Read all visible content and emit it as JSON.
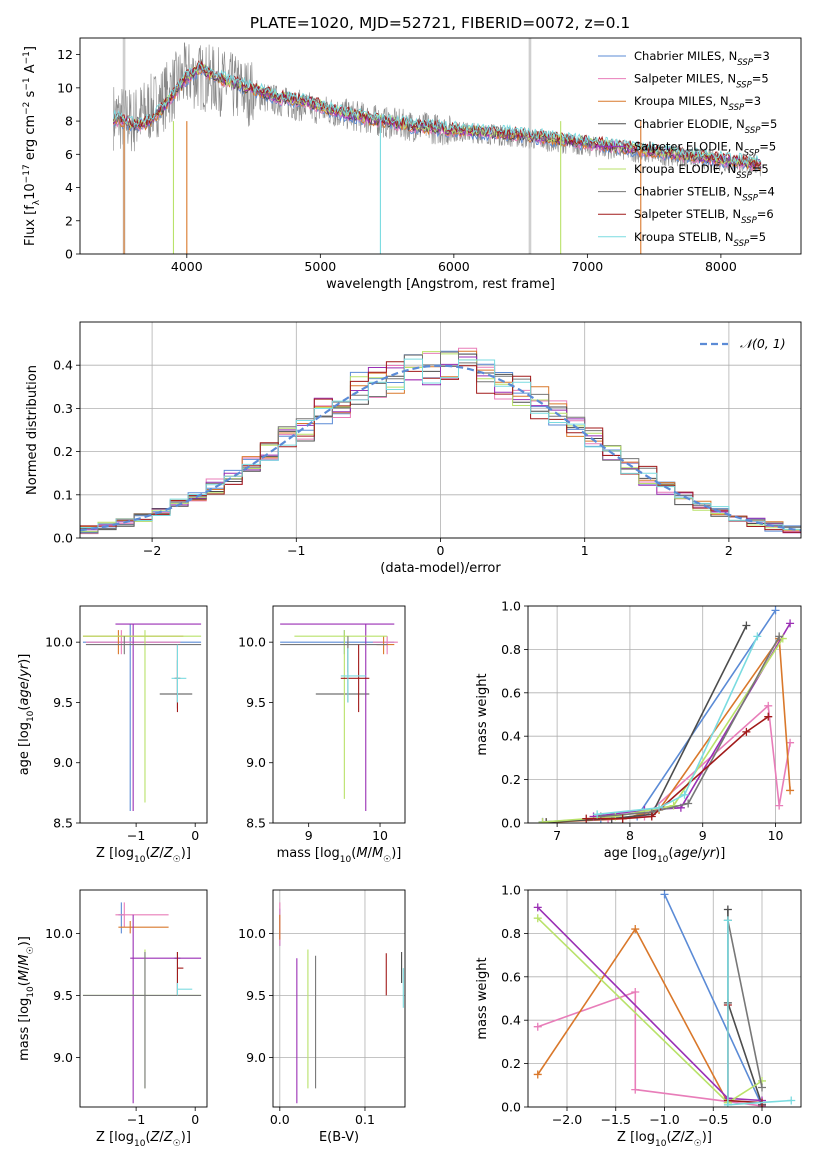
{
  "figure_title": "PLATE=1020, MJD=52721, FIBERID=0072, z=0.1",
  "colors": {
    "c1": "#5b8bd6",
    "c2": "#e87db9",
    "c3": "#d9782b",
    "c4": "#4d4d4d",
    "c5": "#9a2fb5",
    "c6": "#b9e26a",
    "c7": "#777777",
    "c8": "#a11a1a",
    "c9": "#7adbe0",
    "normal": "#5b8bd6",
    "grid": "#b0b0b0"
  },
  "chart_data": [
    {
      "id": "spectrum",
      "type": "line",
      "title": "",
      "xlabel": "wavelength [Angstrom, rest frame]",
      "ylabel": "Flux [f_λ10^-17 erg cm^-2 s^-1 A^-1]",
      "xlim": [
        3200,
        8600
      ],
      "ylim": [
        0,
        13
      ],
      "xticks": [
        4000,
        5000,
        6000,
        7000,
        8000
      ],
      "yticks": [
        0,
        2,
        4,
        6,
        8,
        10,
        12
      ],
      "grid": false,
      "legend_position": "top-right",
      "observed_flux": {
        "x": [
          3450,
          3600,
          3800,
          4000,
          4200,
          4400,
          4600,
          4800,
          5000,
          5200,
          5500,
          5800,
          6000,
          6300,
          6600,
          6900,
          7200,
          7500,
          7800,
          8100,
          8300
        ],
        "y": [
          8.3,
          8.0,
          9.2,
          10.8,
          10.5,
          9.9,
          9.4,
          9.0,
          8.7,
          8.4,
          7.9,
          7.6,
          7.4,
          7.2,
          6.9,
          6.6,
          6.3,
          6.0,
          5.8,
          5.5,
          5.3
        ]
      },
      "model_flux": {
        "x": [
          3450,
          3600,
          3700,
          3800,
          3900,
          4000,
          4100,
          4300,
          4500,
          4700,
          4900,
          5100,
          5400,
          5700,
          6000,
          6300,
          6600,
          6900,
          7200,
          7500,
          7800,
          8100,
          8300
        ],
        "y": [
          8.2,
          7.8,
          7.9,
          8.6,
          9.6,
          10.6,
          11.2,
          10.4,
          9.9,
          9.4,
          9.2,
          8.6,
          8.1,
          7.7,
          7.5,
          7.3,
          7.1,
          6.8,
          6.5,
          6.2,
          5.9,
          5.6,
          5.4
        ]
      },
      "legend": [
        {
          "label": "Chabrier MILES, N",
          "sub": "SSP",
          "eq": "=3",
          "color": "c1"
        },
        {
          "label": "Salpeter MILES, N",
          "sub": "SSP",
          "eq": "=5",
          "color": "c2"
        },
        {
          "label": "Kroupa MILES, N",
          "sub": "SSP",
          "eq": "=3",
          "color": "c3"
        },
        {
          "label": "Chabrier ELODIE, N",
          "sub": "SSP",
          "eq": "=5",
          "color": "c4"
        },
        {
          "label": "Salpeter ELODIE, N",
          "sub": "SSP",
          "eq": "=5",
          "color": "c5"
        },
        {
          "label": "Kroupa ELODIE, N",
          "sub": "SSP",
          "eq": "=5",
          "color": "c6"
        },
        {
          "label": "Chabrier STELIB, N",
          "sub": "SSP",
          "eq": "=4",
          "color": "c7"
        },
        {
          "label": "Salpeter STELIB, N",
          "sub": "SSP",
          "eq": "=6",
          "color": "c8"
        },
        {
          "label": "Kroupa STELIB, N",
          "sub": "SSP",
          "eq": "=5",
          "color": "c9"
        }
      ]
    },
    {
      "id": "residual-histogram",
      "type": "line",
      "xlabel": "(data-model)/error",
      "ylabel": "Normed distribution",
      "xlim": [
        -2.5,
        2.5
      ],
      "ylim": [
        0,
        0.5
      ],
      "xticks": [
        -2,
        -1,
        0,
        1,
        2
      ],
      "yticks": [
        0.0,
        0.1,
        0.2,
        0.3,
        0.4
      ],
      "grid": true,
      "legend_position": "top-right",
      "legend": [
        {
          "label": "𝒩(0, 1)",
          "color": "normal"
        }
      ],
      "bin_edges": [
        -2.5,
        -2.375,
        -2.25,
        -2.125,
        -2.0,
        -1.875,
        -1.75,
        -1.625,
        -1.5,
        -1.375,
        -1.25,
        -1.125,
        -1.0,
        -0.875,
        -0.75,
        -0.625,
        -0.5,
        -0.375,
        -0.25,
        -0.125,
        0.0,
        0.125,
        0.25,
        0.375,
        0.5,
        0.625,
        0.75,
        0.875,
        1.0,
        1.125,
        1.25,
        1.375,
        1.5,
        1.625,
        1.75,
        1.875,
        2.0,
        2.125,
        2.25,
        2.375,
        2.5
      ]
    },
    {
      "id": "age-vs-Z",
      "type": "scatter",
      "xlabel": "Z [log10(Z/Z☉)]",
      "ylabel": "age [log10(age/yr)]",
      "xlim": [
        -1.95,
        0.2
      ],
      "ylim": [
        8.5,
        10.3
      ],
      "xticks": [
        -1,
        0
      ],
      "yticks": [
        8.5,
        9.0,
        9.5,
        10.0
      ],
      "grid": false
    },
    {
      "id": "age-vs-mass",
      "type": "scatter",
      "xlabel": "mass [log10(M/M☉)]",
      "ylabel": "",
      "xlim": [
        8.5,
        10.35
      ],
      "ylim": [
        8.5,
        10.3
      ],
      "xticks": [
        9,
        10
      ],
      "yticks": [
        8.5,
        9.0,
        9.5,
        10.0
      ],
      "grid": false
    },
    {
      "id": "massweight-vs-age",
      "type": "line",
      "xlabel": "age [log10(age/yr)]",
      "ylabel": "mass weight",
      "xlim": [
        6.6,
        10.35
      ],
      "ylim": [
        0,
        1.0
      ],
      "xticks": [
        7,
        8,
        9,
        10
      ],
      "yticks": [
        0.0,
        0.2,
        0.4,
        0.6,
        0.8,
        1.0
      ],
      "grid": true,
      "series": [
        {
          "color": "c1",
          "x": [
            6.8,
            7.6,
            8.1,
            10.0
          ],
          "y": [
            0.005,
            0.02,
            0.03,
            0.98
          ]
        },
        {
          "color": "c2",
          "x": [
            6.8,
            7.7,
            8.2,
            9.9,
            10.05,
            10.2
          ],
          "y": [
            0.004,
            0.015,
            0.03,
            0.54,
            0.08,
            0.37
          ]
        },
        {
          "color": "c3",
          "x": [
            6.85,
            7.9,
            8.4,
            10.05,
            10.2
          ],
          "y": [
            0.003,
            0.02,
            0.06,
            0.85,
            0.15
          ]
        },
        {
          "color": "c4",
          "x": [
            6.85,
            7.75,
            8.3,
            9.6
          ],
          "y": [
            0.004,
            0.02,
            0.04,
            0.91
          ]
        },
        {
          "color": "c5",
          "x": [
            7.5,
            8.2,
            8.7,
            10.2
          ],
          "y": [
            0.03,
            0.06,
            0.07,
            0.92
          ]
        },
        {
          "color": "c6",
          "x": [
            6.8,
            7.8,
            8.6,
            10.1
          ],
          "y": [
            0.004,
            0.03,
            0.08,
            0.85
          ]
        },
        {
          "color": "c7",
          "x": [
            7.6,
            8.3,
            8.8,
            10.05
          ],
          "y": [
            0.03,
            0.05,
            0.09,
            0.86
          ]
        },
        {
          "color": "c8",
          "x": [
            7.4,
            7.9,
            8.3,
            9.6,
            9.9
          ],
          "y": [
            0.02,
            0.02,
            0.03,
            0.42,
            0.49
          ]
        },
        {
          "color": "c9",
          "x": [
            7.55,
            8.4,
            8.75,
            9.75
          ],
          "y": [
            0.04,
            0.07,
            0.13,
            0.86
          ]
        }
      ]
    },
    {
      "id": "mass-vs-Z",
      "type": "scatter",
      "xlabel": "Z [log10(Z/Z☉)]",
      "ylabel": "mass [log10(M/M☉)]",
      "xlim": [
        -1.95,
        0.2
      ],
      "ylim": [
        8.6,
        10.35
      ],
      "xticks": [
        -1,
        0
      ],
      "yticks": [
        9.0,
        9.5,
        10.0
      ],
      "grid": false
    },
    {
      "id": "mass-vs-EBV",
      "type": "scatter",
      "xlabel": "E(B-V)",
      "ylabel": "",
      "xlim": [
        -0.008,
        0.147
      ],
      "ylim": [
        8.6,
        10.35
      ],
      "xticks": [
        0.0,
        0.1
      ],
      "yticks": [
        9.0,
        9.5,
        10.0
      ],
      "grid": true
    },
    {
      "id": "massweight-vs-Z",
      "type": "line",
      "xlabel": "Z [log10(Z/Z☉)]",
      "ylabel": "mass weight",
      "xlim": [
        -2.4,
        0.4
      ],
      "ylim": [
        0,
        1.0
      ],
      "xticks": [
        -2.0,
        -1.5,
        -1.0,
        -0.5,
        0.0
      ],
      "yticks": [
        0.0,
        0.2,
        0.4,
        0.6,
        0.8,
        1.0
      ],
      "grid": true,
      "series": [
        {
          "color": "c1",
          "x": [
            -1.0,
            0.0
          ],
          "y": [
            0.98,
            0.005
          ]
        },
        {
          "color": "c2",
          "x": [
            -2.3,
            -1.3,
            -1.3,
            0.0
          ],
          "y": [
            0.37,
            0.53,
            0.08,
            0.005
          ]
        },
        {
          "color": "c3",
          "x": [
            -2.3,
            -1.3,
            -0.35
          ],
          "y": [
            0.15,
            0.82,
            0.02
          ]
        },
        {
          "color": "c4",
          "x": [
            -0.35,
            -0.35,
            0.0
          ],
          "y": [
            0.91,
            0.48,
            0.01
          ]
        },
        {
          "color": "c5",
          "x": [
            -2.3,
            -0.35,
            0.0
          ],
          "y": [
            0.92,
            0.04,
            0.03
          ]
        },
        {
          "color": "c6",
          "x": [
            -2.3,
            -0.35,
            0.0
          ],
          "y": [
            0.87,
            0.02,
            0.12
          ]
        },
        {
          "color": "c7",
          "x": [
            -0.35,
            0.0
          ],
          "y": [
            0.86,
            0.09
          ]
        },
        {
          "color": "c8",
          "x": [
            -0.35,
            -0.35,
            0.0
          ],
          "y": [
            0.47,
            0.03,
            0.02
          ]
        },
        {
          "color": "c9",
          "x": [
            -0.35,
            -0.35,
            0.3
          ],
          "y": [
            0.86,
            0.01,
            0.03
          ]
        }
      ]
    }
  ]
}
